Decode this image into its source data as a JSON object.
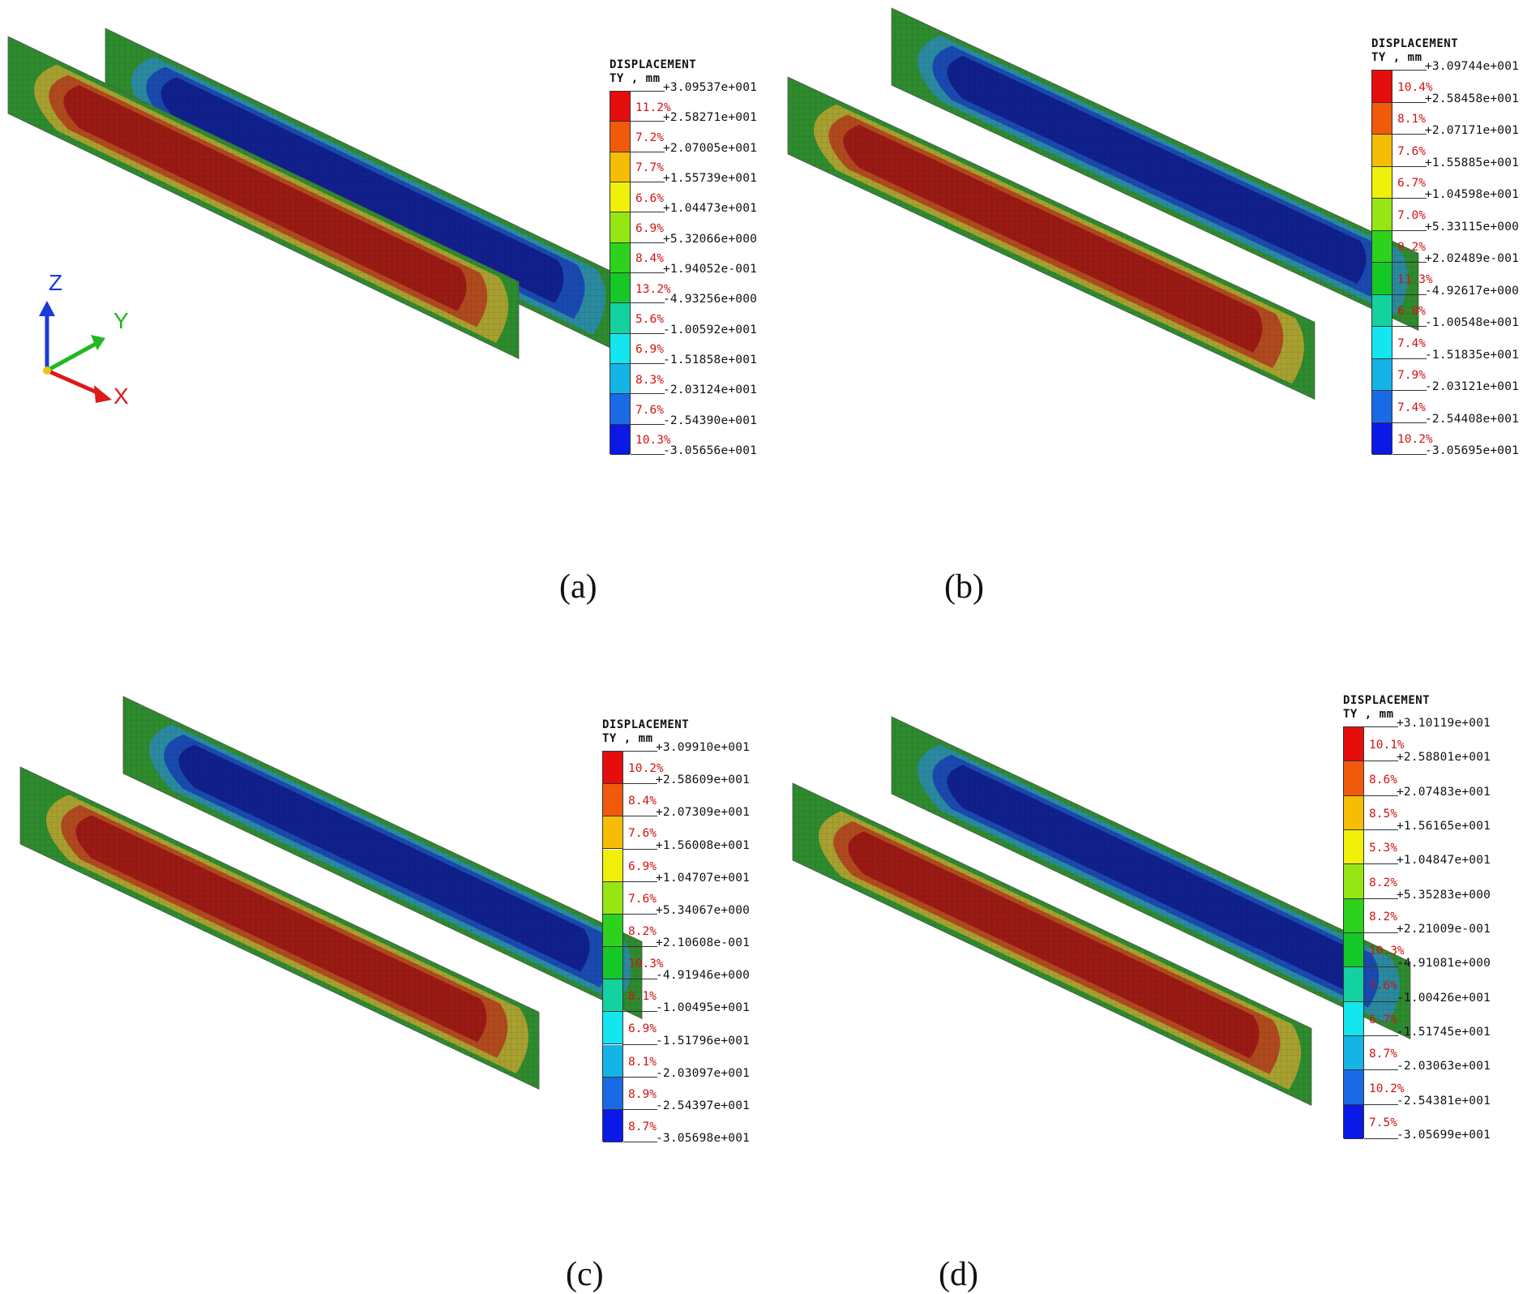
{
  "colors": {
    "bands": [
      "#e60d0d",
      "#f05a0a",
      "#f5bd05",
      "#f0f00a",
      "#96e614",
      "#2dd21e",
      "#14c828",
      "#14d2a0",
      "#14e6f0",
      "#14b4e6",
      "#1a6ae6",
      "#0a19e6"
    ],
    "plate_outer": "#2e8b2e",
    "plate_front_mid": "#a8a030",
    "plate_front_inner": "#b04a1e",
    "plate_front_core": "#9a1a14",
    "plate_back_mid": "#2a8aa0",
    "plate_back_inner": "#1a4ab0",
    "plate_back_core": "#10208c"
  },
  "axes": {
    "z_label": "Z",
    "y_label": "Y",
    "x_label": "X"
  },
  "panels": [
    {
      "caption": "(a)",
      "legend": {
        "title": "DISPLACEMENT",
        "subtitle": "TY , mm",
        "values": [
          "+3.09537e+001",
          "+2.58271e+001",
          "+2.07005e+001",
          "+1.55739e+001",
          "+1.04473e+001",
          "+5.32066e+000",
          "+1.94052e-001",
          "-4.93256e+000",
          "-1.00592e+001",
          "-1.51858e+001",
          "-2.03124e+001",
          "-2.54390e+001",
          "-3.05656e+001"
        ],
        "percents": [
          "11.2%",
          "7.2%",
          "7.7%",
          "6.6%",
          "6.9%",
          "8.4%",
          "13.2%",
          "5.6%",
          "6.9%",
          "8.3%",
          "7.6%",
          "10.3%"
        ]
      }
    },
    {
      "caption": "(b)",
      "legend": {
        "title": "DISPLACEMENT",
        "subtitle": "TY , mm",
        "values": [
          "+3.09744e+001",
          "+2.58458e+001",
          "+2.07171e+001",
          "+1.55885e+001",
          "+1.04598e+001",
          "+5.33115e+000",
          "+2.02489e-001",
          "-4.92617e+000",
          "-1.00548e+001",
          "-1.51835e+001",
          "-2.03121e+001",
          "-2.54408e+001",
          "-3.05695e+001"
        ],
        "percents": [
          "10.4%",
          "8.1%",
          "7.6%",
          "6.7%",
          "7.0%",
          "9.2%",
          "11.3%",
          "6.8%",
          "7.4%",
          "7.9%",
          "7.4%",
          "10.2%"
        ]
      }
    },
    {
      "caption": "(c)",
      "legend": {
        "title": "DISPLACEMENT",
        "subtitle": "TY , mm",
        "values": [
          "+3.09910e+001",
          "+2.58609e+001",
          "+2.07309e+001",
          "+1.56008e+001",
          "+1.04707e+001",
          "+5.34067e+000",
          "+2.10608e-001",
          "-4.91946e+000",
          "-1.00495e+001",
          "-1.51796e+001",
          "-2.03097e+001",
          "-2.54397e+001",
          "-3.05698e+001"
        ],
        "percents": [
          "10.2%",
          "8.4%",
          "7.6%",
          "6.9%",
          "7.6%",
          "8.2%",
          "10.3%",
          "8.1%",
          "6.9%",
          "8.1%",
          "8.9%",
          "8.7%"
        ]
      }
    },
    {
      "caption": "(d)",
      "legend": {
        "title": "DISPLACEMENT",
        "subtitle": "TY , mm",
        "values": [
          "+3.10119e+001",
          "+2.58801e+001",
          "+2.07483e+001",
          "+1.56165e+001",
          "+1.04847e+001",
          "+5.35283e+000",
          "+2.21009e-001",
          "-4.91081e+000",
          "-1.00426e+001",
          "-1.51745e+001",
          "-2.03063e+001",
          "-2.54381e+001",
          "-3.05699e+001"
        ],
        "percents": [
          "10.1%",
          "8.6%",
          "8.5%",
          "5.3%",
          "8.2%",
          "8.2%",
          "10.3%",
          "7.6%",
          "6.7%",
          "8.7%",
          "10.2%",
          "7.5%"
        ]
      }
    }
  ]
}
